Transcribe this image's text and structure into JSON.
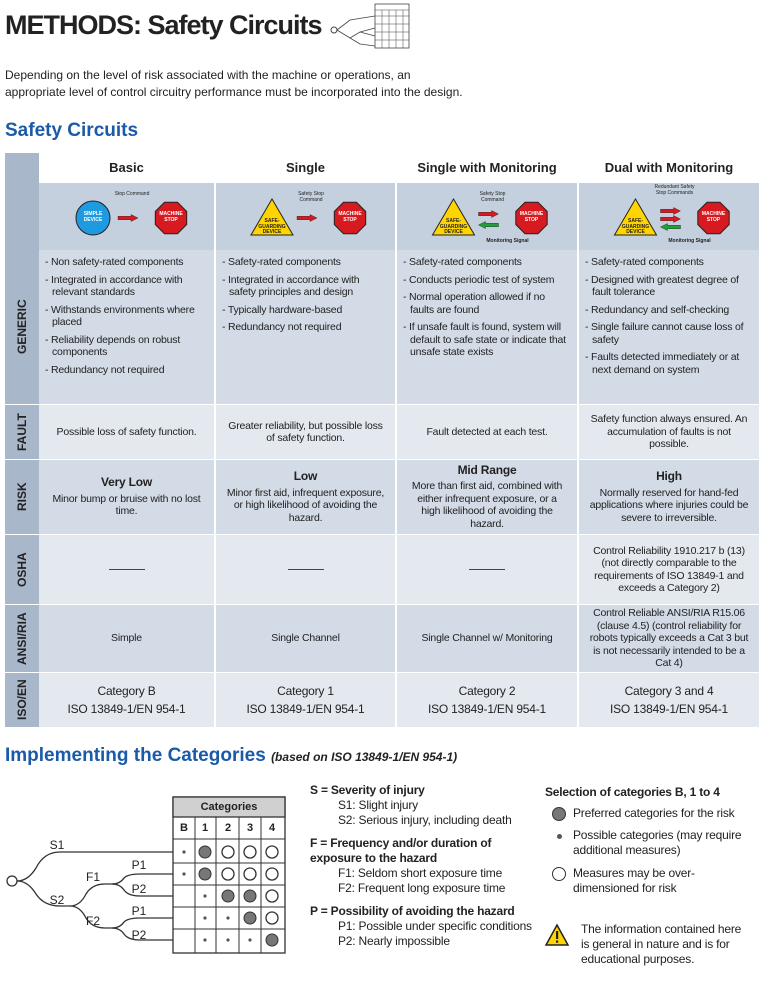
{
  "header": {
    "title": "METHODS: Safety Circuits"
  },
  "intro": [
    "Depending on the level of risk associated with the machine or operations, an",
    "appropriate level of control circuitry performance must be incorporated into the design."
  ],
  "section1": {
    "title": "Safety Circuits"
  },
  "table": {
    "columns": [
      "Basic",
      "Single",
      "Single with Monitoring",
      "Dual with Monitoring"
    ],
    "diagrams": [
      {
        "device": "SIMPLE DEVICE",
        "command": "Stop Command",
        "stop": "MACHINE STOP"
      },
      {
        "device": "SAFE-GUARDING DEVICE",
        "command": "Safety Stop Command",
        "stop": "MACHINE STOP"
      },
      {
        "device": "SAFE-GUARDING DEVICE",
        "command": "Safety Stop Command",
        "signal": "Monitoring Signal",
        "stop": "MACHINE STOP"
      },
      {
        "device": "SAFE-GUARDING DEVICE",
        "command": "Redundant Safety Stop Commands",
        "signal": "Monitoring Signal",
        "stop": "MACHINE STOP"
      }
    ],
    "rows": [
      {
        "label": "GENERIC",
        "cells": [
          {
            "bullets": [
              "Non safety-rated components",
              "Integrated in accordance with relevant standards",
              "Withstands environments where placed",
              "Reliability depends on robust components",
              "Redundancy not required"
            ]
          },
          {
            "bullets": [
              "Safety-rated components",
              "Integrated in accordance with safety principles and design",
              "Typically hardware-based",
              "Redundancy not required"
            ]
          },
          {
            "bullets": [
              "Safety-rated components",
              "Conducts periodic test of system",
              "Normal operation allowed if no faults are found",
              "If unsafe fault is found, system will default to safe state or indicate that unsafe state exists"
            ]
          },
          {
            "bullets": [
              "Safety-rated components",
              "Designed with greatest degree of fault tolerance",
              "Redundancy and self-checking",
              "Single failure cannot cause loss of safety",
              "Faults detected immediately or at next demand on system"
            ]
          }
        ]
      },
      {
        "label": "FAULT",
        "cells": [
          {
            "text": "Possible loss of safety function."
          },
          {
            "text": "Greater reliability, but possible loss of safety function."
          },
          {
            "text": "Fault detected at each test."
          },
          {
            "text": "Safety function always ensured. An accumulation of faults is not possible."
          }
        ]
      },
      {
        "label": "RISK",
        "cells": [
          {
            "heading": "Very Low",
            "text": "Minor bump or bruise with no lost time."
          },
          {
            "heading": "Low",
            "text": "Minor first aid, infrequent exposure, or high likelihood of avoiding the hazard."
          },
          {
            "heading": "Mid Range",
            "text": "More than first aid, combined with either infrequent exposure, or a high likelihood of avoiding the hazard."
          },
          {
            "heading": "High",
            "text": "Normally reserved for hand-fed applications where injuries could be severe to irreversible."
          }
        ]
      },
      {
        "label": "OSHA",
        "cells": [
          null,
          null,
          null,
          {
            "text": "Control Reliability 1910.217 b (13) (not directly comparable to the requirements of ISO 13849-1 and exceeds a Category 2)"
          }
        ]
      },
      {
        "label": "ANSI/RIA",
        "cells": [
          {
            "text": "Simple"
          },
          {
            "text": "Single Channel"
          },
          {
            "text": "Single Channel w/ Monitoring"
          },
          {
            "text": "Control Reliable ANSI/RIA R15.06 (clause 4.5) (control reliability for robots typically exceeds a Cat 3 but is not necessarily intended to be a Cat 4)"
          }
        ]
      },
      {
        "label": "ISO/EN",
        "cells": [
          {
            "text": "Category B",
            "sub": "ISO 13849-1/EN 954-1"
          },
          {
            "text": "Category 1",
            "sub": "ISO 13849-1/EN 954-1"
          },
          {
            "text": "Category 2",
            "sub": "ISO 13849-1/EN 954-1"
          },
          {
            "text": "Category 3 and 4",
            "sub": "ISO 13849-1/EN 954-1"
          }
        ]
      }
    ]
  },
  "section2": {
    "title": "Implementing the Categories",
    "subtitle": "(based on ISO 13849-1/EN 954-1)"
  },
  "categories": {
    "title": "Categories",
    "columns": [
      "B",
      "1",
      "2",
      "3",
      "4"
    ],
    "tree": [
      "S1",
      "S2",
      "F1",
      "F2",
      "P1",
      "P2",
      "P1",
      "P2"
    ]
  },
  "legend": [
    {
      "head": "S = Severity of injury",
      "items": [
        "S1: Slight injury",
        "S2: Serious injury, including death"
      ]
    },
    {
      "head": "F = Frequency and/or duration of exposure to the hazard",
      "items": [
        "F1: Seldom short exposure time",
        "F2: Frequent long exposure time"
      ]
    },
    {
      "head": "P = Possibility of avoiding the hazard",
      "items": [
        "P1: Possible under specific conditions",
        "P2: Nearly impossible"
      ]
    }
  ],
  "selection": {
    "title": "Selection of categories B, 1 to 4",
    "items": [
      "Preferred categories for the risk",
      "Possible categories (may require additional measures)",
      "Measures may be over-dimensioned for risk"
    ]
  },
  "note": "The information contained here is general in nature and is for educational purposes."
}
